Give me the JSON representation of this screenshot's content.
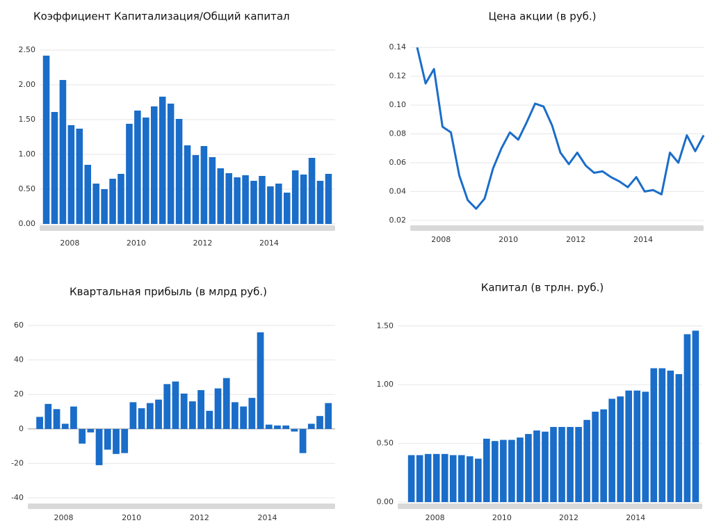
{
  "chart_data": [
    {
      "type": "bar",
      "title": "Коэффициент Капитализация/Общий капитал",
      "color": "#1a6dc8",
      "x": [
        2007.5,
        2007.75,
        2008,
        2008.25,
        2008.5,
        2008.75,
        2009,
        2009.25,
        2009.5,
        2009.75,
        2010,
        2010.25,
        2010.5,
        2010.75,
        2011,
        2011.25,
        2011.5,
        2011.75,
        2012,
        2012.25,
        2012.5,
        2012.75,
        2013,
        2013.25,
        2013.5,
        2013.75,
        2014,
        2014.25,
        2014.5,
        2014.75,
        2015,
        2015.25,
        2015.5,
        2015.75,
        2016
      ],
      "values": [
        2.42,
        1.61,
        2.07,
        1.42,
        1.37,
        0.85,
        0.58,
        0.5,
        0.65,
        0.72,
        1.44,
        1.63,
        1.53,
        1.69,
        1.83,
        1.73,
        1.51,
        1.13,
        0.99,
        1.12,
        0.96,
        0.8,
        0.73,
        0.67,
        0.7,
        0.62,
        0.69,
        0.54,
        0.58,
        0.45,
        0.77,
        0.71,
        0.95,
        0.62,
        0.72
      ],
      "xlim": [
        2007.3,
        2016.2
      ],
      "xticks": [
        2008,
        2010,
        2012,
        2014
      ],
      "ylim": [
        0,
        2.6
      ],
      "yticks": [
        {
          "value": 0,
          "label": "0.00"
        },
        {
          "value": 0.5,
          "label": "0.50"
        },
        {
          "value": 1,
          "label": "1.00"
        },
        {
          "value": 1.5,
          "label": "1.50"
        },
        {
          "value": 2,
          "label": "2.00"
        },
        {
          "value": 2.5,
          "label": "2.50"
        }
      ],
      "grid": true
    },
    {
      "type": "line",
      "title": "Цена акции (в руб.)",
      "color": "#1a6dc8",
      "x": [
        2007.5,
        2007.75,
        2008,
        2008.25,
        2008.5,
        2008.75,
        2009,
        2009.25,
        2009.5,
        2009.75,
        2010,
        2010.25,
        2010.5,
        2010.75,
        2011,
        2011.25,
        2011.5,
        2011.75,
        2012,
        2012.25,
        2012.5,
        2012.75,
        2013,
        2013.25,
        2013.5,
        2013.75,
        2014,
        2014.25,
        2014.5,
        2014.75,
        2015,
        2015.25,
        2015.5,
        2015.75,
        2016
      ],
      "values": [
        0.14,
        0.115,
        0.125,
        0.085,
        0.081,
        0.051,
        0.034,
        0.028,
        0.035,
        0.056,
        0.07,
        0.081,
        0.076,
        0.088,
        0.101,
        0.099,
        0.086,
        0.067,
        0.059,
        0.067,
        0.058,
        0.053,
        0.054,
        0.05,
        0.047,
        0.043,
        0.05,
        0.04,
        0.041,
        0.038,
        0.067,
        0.06,
        0.079,
        0.068,
        0.079
      ],
      "xlim": [
        2007.5,
        2016
      ],
      "xticks": [
        2008,
        2010,
        2012,
        2014
      ],
      "ylim": [
        0.0175,
        0.143
      ],
      "yticks": [
        0.02,
        {
          "value": 0.04,
          "label": "0.04"
        },
        {
          "value": 0.06,
          "label": "0.06"
        },
        {
          "value": 0.08,
          "label": "0.08"
        },
        {
          "value": 0.1,
          "label": "0.10"
        },
        0.12,
        0.14
      ],
      "grid": true
    },
    {
      "type": "bar",
      "title": "Квартальная прибыль (в млрд руб.)",
      "color": "#1a6dc8",
      "x": [
        2007.5,
        2007.75,
        2008,
        2008.25,
        2008.5,
        2008.75,
        2009,
        2009.25,
        2009.5,
        2009.75,
        2010,
        2010.25,
        2010.5,
        2010.75,
        2011,
        2011.25,
        2011.5,
        2011.75,
        2012,
        2012.25,
        2012.5,
        2012.75,
        2013,
        2013.25,
        2013.5,
        2013.75,
        2014,
        2014.25,
        2014.5,
        2014.75,
        2015,
        2015.25,
        2015.5,
        2015.75,
        2016
      ],
      "values": [
        7,
        14.5,
        11.5,
        3,
        13,
        -8.5,
        -2,
        -21,
        -12,
        -14.5,
        -14,
        15.5,
        12,
        15,
        17,
        26,
        27.5,
        20.5,
        16,
        22.5,
        10.5,
        23.5,
        29.5,
        15.5,
        13,
        18,
        56,
        2.5,
        2,
        2,
        -1.5,
        -14,
        3,
        7.5,
        15
      ],
      "xlim": [
        2007.15,
        2016.2
      ],
      "xticks": [
        2008,
        2010,
        2012,
        2014
      ],
      "ylim": [
        -42.4,
        62.4
      ],
      "yticks": [
        -40,
        -20,
        0,
        20,
        40,
        60
      ],
      "grid": true
    },
    {
      "type": "bar",
      "title": "Капитал (в трлн. руб.)",
      "color": "#1a6dc8",
      "x": [
        2007.5,
        2007.75,
        2008,
        2008.25,
        2008.5,
        2008.75,
        2009,
        2009.25,
        2009.5,
        2009.75,
        2010,
        2010.25,
        2010.5,
        2010.75,
        2011,
        2011.25,
        2011.5,
        2011.75,
        2012,
        2012.25,
        2012.5,
        2012.75,
        2013,
        2013.25,
        2013.5,
        2013.75,
        2014,
        2014.25,
        2014.5,
        2014.75,
        2015,
        2015.25,
        2015.5,
        2015.75,
        2016
      ],
      "values": [
        0.4,
        0.4,
        0.41,
        0.41,
        0.41,
        0.4,
        0.4,
        0.39,
        0.37,
        0.54,
        0.52,
        0.53,
        0.53,
        0.55,
        0.58,
        0.61,
        0.6,
        0.64,
        0.64,
        0.64,
        0.64,
        0.7,
        0.77,
        0.79,
        0.88,
        0.9,
        0.95,
        0.95,
        0.94,
        1.14,
        1.14,
        1.12,
        1.09,
        1.43,
        1.46
      ],
      "xlim": [
        2007.3,
        2016.2
      ],
      "xticks": [
        2008,
        2010,
        2012,
        2014
      ],
      "ylim": [
        0,
        1.54
      ],
      "yticks": [
        {
          "value": 0,
          "label": "0.00"
        },
        {
          "value": 0.5,
          "label": "0.50"
        },
        {
          "value": 1,
          "label": "1.00"
        },
        {
          "value": 1.5,
          "label": "1.50"
        }
      ],
      "grid": true
    }
  ]
}
